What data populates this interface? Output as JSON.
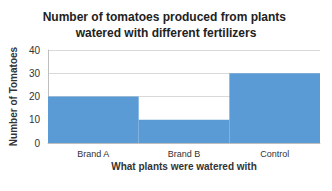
{
  "chart_data": {
    "type": "bar",
    "title": "Number of tomatoes produced from plants watered with different fertilizers",
    "x_label": "What plants were watered with",
    "y_label": "Number of Tomatoes",
    "categories": [
      "Brand A",
      "Brand B",
      "Control"
    ],
    "values": [
      20,
      10,
      30
    ],
    "color": "#5b9bd5",
    "ylim": [
      0,
      40
    ],
    "yticks": [
      0,
      10,
      20,
      30,
      40
    ],
    "grid": true
  }
}
